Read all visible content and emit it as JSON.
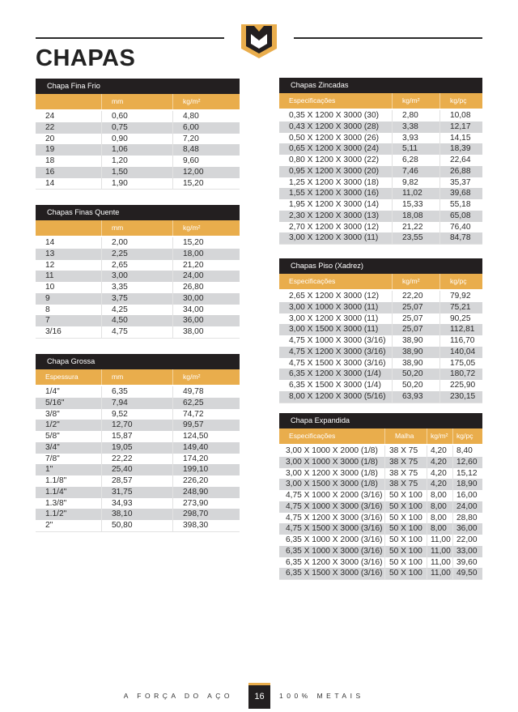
{
  "page": {
    "title": "CHAPAS",
    "footer_left": "A FORÇA DO AÇO",
    "page_number": "16",
    "footer_right": "100% METAIS"
  },
  "colors": {
    "accent": "#e9ad4c",
    "dark": "#231f20",
    "stripe": "#d5d6d8"
  },
  "tables": [
    {
      "id": "chapa-fina-frio",
      "title": "Chapa Fina Frio",
      "headers": [
        "",
        "mm",
        "kg/m²"
      ],
      "rows": [
        [
          "24",
          "0,60",
          "4,80"
        ],
        [
          "22",
          "0,75",
          "6,00"
        ],
        [
          "20",
          "0,90",
          "7,20"
        ],
        [
          "19",
          "1,06",
          "8,48"
        ],
        [
          "18",
          "1,20",
          "9,60"
        ],
        [
          "16",
          "1,50",
          "12,00"
        ],
        [
          "14",
          "1,90",
          "15,20"
        ]
      ]
    },
    {
      "id": "chapas-finas-quente",
      "title": "Chapas Finas Quente",
      "headers": [
        "",
        "mm",
        "kg/m²"
      ],
      "rows": [
        [
          "14",
          "2,00",
          "15,20"
        ],
        [
          "13",
          "2,25",
          "18,00"
        ],
        [
          "12",
          "2,65",
          "21,20"
        ],
        [
          "11",
          "3,00",
          "24,00"
        ],
        [
          "10",
          "3,35",
          "26,80"
        ],
        [
          "9",
          "3,75",
          "30,00"
        ],
        [
          "8",
          "4,25",
          "34,00"
        ],
        [
          "7",
          "4,50",
          "36,00"
        ],
        [
          "3/16",
          "4,75",
          "38,00"
        ]
      ]
    },
    {
      "id": "chapa-grossa",
      "title": "Chapa Grossa",
      "headers": [
        "Espessura",
        "mm",
        "kg/m²"
      ],
      "rows": [
        [
          "1/4\"",
          "6,35",
          "49,78"
        ],
        [
          "5/16\"",
          "7,94",
          "62,25"
        ],
        [
          "3/8\"",
          "9,52",
          "74,72"
        ],
        [
          "1/2\"",
          "12,70",
          "99,57"
        ],
        [
          "5/8\"",
          "15,87",
          "124,50"
        ],
        [
          "3/4\"",
          "19,05",
          "149,40"
        ],
        [
          "7/8\"",
          "22,22",
          "174,20"
        ],
        [
          "1\"",
          "25,40",
          "199,10"
        ],
        [
          "1.1/8\"",
          "28,57",
          "226,20"
        ],
        [
          "1.1/4\"",
          "31,75",
          "248,90"
        ],
        [
          "1.3/8\"",
          "34,93",
          "273,90"
        ],
        [
          "1.1/2\"",
          "38,10",
          "298,70"
        ],
        [
          "2\"",
          "50,80",
          "398,30"
        ]
      ]
    },
    {
      "id": "chapas-zincadas",
      "title": "Chapas Zincadas",
      "headers": [
        "Especificações",
        "kg/m²",
        "kg/pç"
      ],
      "rows": [
        [
          "0,35 X 1200 X 3000 (30)",
          "2,80",
          "10,08"
        ],
        [
          "0,43 X 1200 X 3000 (28)",
          "3,38",
          "12,17"
        ],
        [
          "0,50 X 1200 X 3000 (26)",
          "3,93",
          "14,15"
        ],
        [
          "0,65 X 1200 X 3000 (24)",
          "5,11",
          "18,39"
        ],
        [
          "0,80 X 1200 X 3000 (22)",
          "6,28",
          "22,64"
        ],
        [
          "0,95 X 1200 X 3000 (20)",
          "7,46",
          "26,88"
        ],
        [
          "1,25 X 1200 X 3000 (18)",
          "9,82",
          "35,37"
        ],
        [
          "1,55 X 1200 X 3000 (16)",
          "11,02",
          "39,68"
        ],
        [
          "1,95 X 1200 X 3000 (14)",
          "15,33",
          "55,18"
        ],
        [
          "2,30 X 1200 X 3000 (13)",
          "18,08",
          "65,08"
        ],
        [
          "2,70 X 1200 X 3000 (12)",
          "21,22",
          "76,40"
        ],
        [
          "3,00 X 1200 X 3000 (11)",
          "23,55",
          "84,78"
        ]
      ]
    },
    {
      "id": "chapas-piso-xadrez",
      "title": "Chapas Piso (Xadrez)",
      "headers": [
        "Especificações",
        "kg/m²",
        "kg/pç"
      ],
      "rows": [
        [
          "2,65 X 1200 X 3000 (12)",
          "22,20",
          "79,92"
        ],
        [
          "3,00 X 1000 X 3000 (11)",
          "25,07",
          "75,21"
        ],
        [
          "3,00 X 1200 X 3000 (11)",
          "25,07",
          "90,25"
        ],
        [
          "3,00 X 1500 X 3000 (11)",
          "25,07",
          "112,81"
        ],
        [
          "4,75 X 1000 X 3000 (3/16)",
          "38,90",
          "116,70"
        ],
        [
          "4,75 X 1200 X 3000 (3/16)",
          "38,90",
          "140,04"
        ],
        [
          "4,75 X 1500 X 3000 (3/16)",
          "38,90",
          "175,05"
        ],
        [
          "6,35 X 1200 X 3000 (1/4)",
          "50,20",
          "180,72"
        ],
        [
          "6,35 X 1500 X 3000 (1/4)",
          "50,20",
          "225,90"
        ],
        [
          "8,00 X 1200 X 3000 (5/16)",
          "63,93",
          "230,15"
        ]
      ]
    },
    {
      "id": "chapa-expandida",
      "title": "Chapa Expandida",
      "headers": [
        "Especificações",
        "Malha",
        "kg/m²",
        "kg/pç"
      ],
      "rows": [
        [
          "3,00 X 1000 X 2000 (1/8)",
          "38 X 75",
          "4,20",
          "8,40"
        ],
        [
          "3,00 X 1000 X 3000 (1/8)",
          "38 X 75",
          "4,20",
          "12,60"
        ],
        [
          "3,00 X 1200 X 3000 (1/8)",
          "38 X 75",
          "4,20",
          "15,12"
        ],
        [
          "3,00 X 1500 X 3000 (1/8)",
          "38 X 75",
          "4,20",
          "18,90"
        ],
        [
          "4,75 X 1000 X 2000 (3/16)",
          "50 X 100",
          "8,00",
          "16,00"
        ],
        [
          "4,75 X 1000 X 3000 (3/16)",
          "50 X 100",
          "8,00",
          "24,00"
        ],
        [
          "4,75 X 1200 X 3000 (3/16)",
          "50 X 100",
          "8,00",
          "28,80"
        ],
        [
          "4,75 X 1500 X 3000 (3/16)",
          "50 X 100",
          "8,00",
          "36,00"
        ],
        [
          "6,35 X 1000 X 2000 (3/16)",
          "50 X 100",
          "11,00",
          "22,00"
        ],
        [
          "6,35 X 1000 X 3000 (3/16)",
          "50 X 100",
          "11,00",
          "33,00"
        ],
        [
          "6,35 X 1200 X 3000 (3/16)",
          "50 X 100",
          "11,00",
          "39,60"
        ],
        [
          "6,35 X 1500 X 3000 (3/16)",
          "50 X 100",
          "11,00",
          "49,50"
        ]
      ]
    }
  ]
}
